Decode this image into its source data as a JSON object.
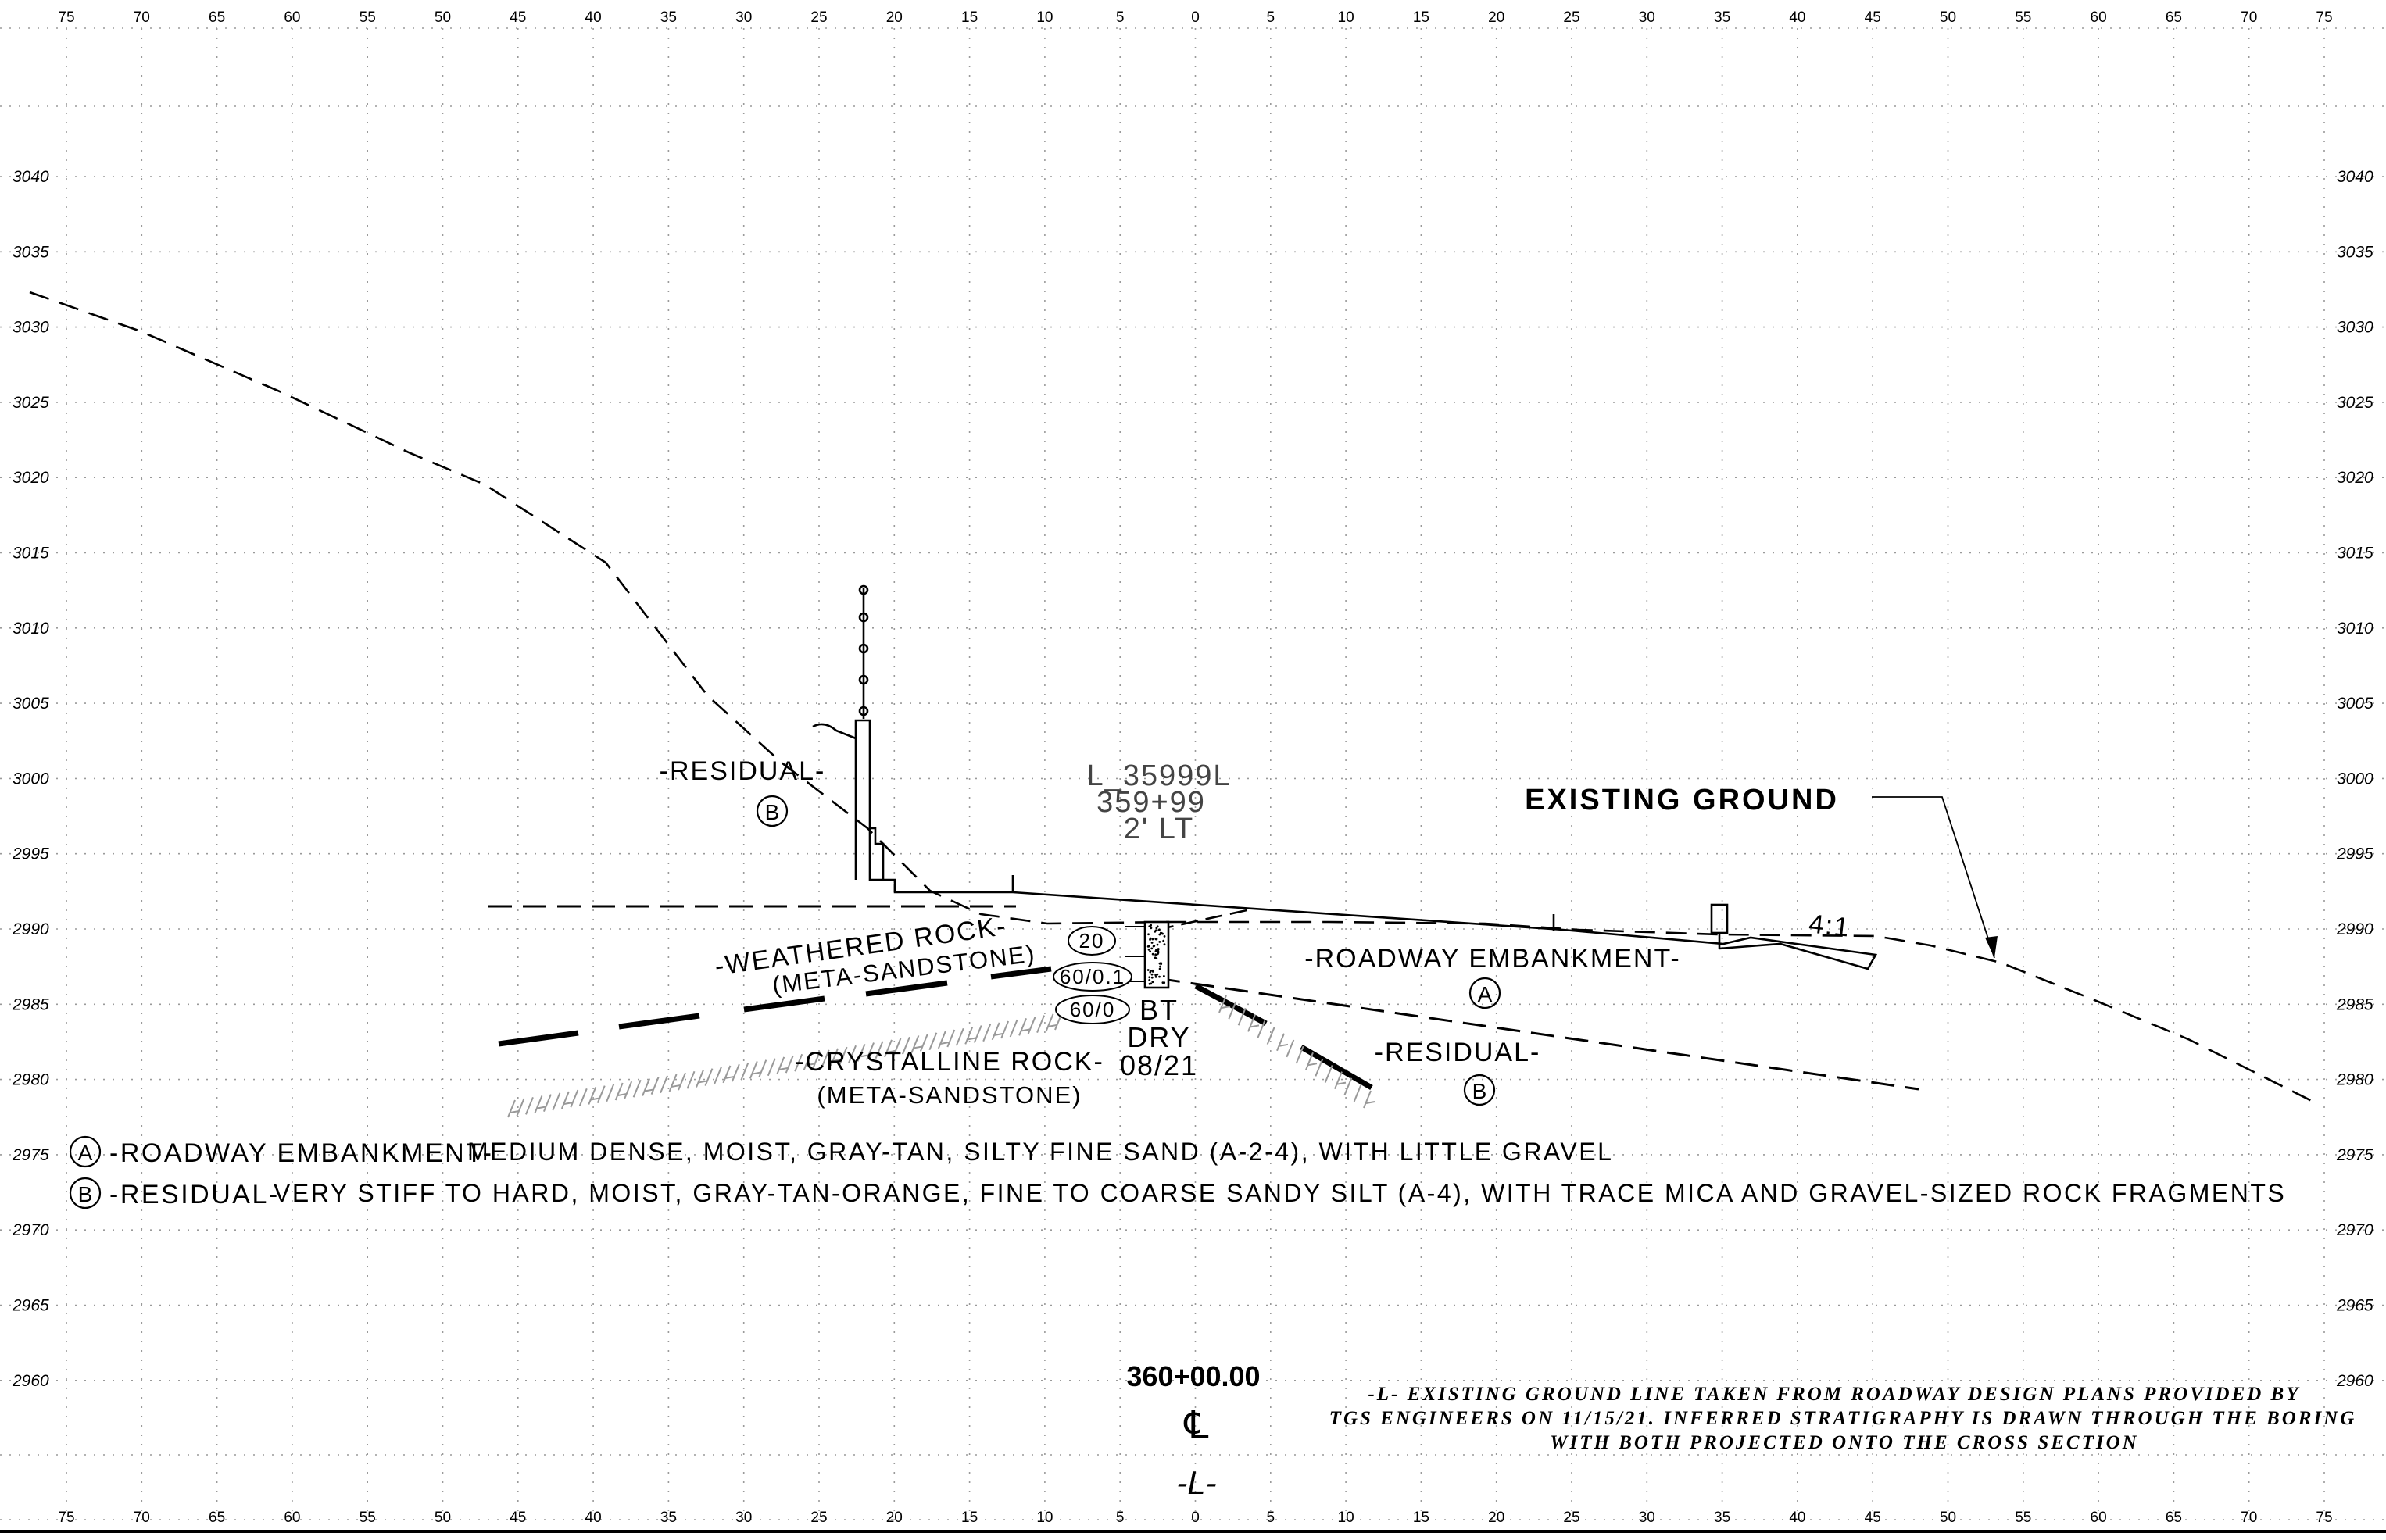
{
  "x_axis": {
    "ticks": [
      "75",
      "70",
      "65",
      "60",
      "55",
      "50",
      "45",
      "40",
      "35",
      "30",
      "25",
      "20",
      "15",
      "10",
      "5",
      "0",
      "5",
      "10",
      "15",
      "20",
      "25",
      "30",
      "35",
      "40",
      "45",
      "50",
      "55",
      "60",
      "65",
      "70",
      "75"
    ]
  },
  "y_axis": {
    "ticks": [
      "3040",
      "3035",
      "3030",
      "3025",
      "3020",
      "3015",
      "3010",
      "3005",
      "3000",
      "2995",
      "2990",
      "2985",
      "2980",
      "2975",
      "2970",
      "2965",
      "2960"
    ]
  },
  "labels": {
    "residual_upper": "-RESIDUAL-",
    "residual_upper_marker": "B",
    "boring_id": "L_35999L",
    "boring_station": "359+99",
    "boring_offset": "2' LT",
    "existing_ground": "EXISTING GROUND",
    "slope": "4:1",
    "weathered_rock": "-WEATHERED ROCK-",
    "weathered_rock_sub": "(META-SANDSTONE)",
    "roadway_embankment": "-ROADWAY EMBANKMENT-",
    "roadway_embankment_marker": "A",
    "crystalline_rock": "-CRYSTALLINE ROCK-",
    "crystalline_rock_sub": "(META-SANDSTONE)",
    "residual_lower": "-RESIDUAL-",
    "residual_lower_marker": "B",
    "bt": "BT",
    "dry": "DRY",
    "date": "08/21",
    "blow_counts": [
      "20",
      "60/0.1",
      "60/0"
    ]
  },
  "legend": [
    {
      "marker": "A",
      "name": "-ROADWAY EMBANKMENT-",
      "description": "MEDIUM DENSE, MOIST, GRAY-TAN, SILTY FINE SAND (A-2-4), WITH LITTLE GRAVEL"
    },
    {
      "marker": "B",
      "name": "-RESIDUAL-",
      "description": "VERY STIFF TO HARD, MOIST, GRAY-TAN-ORANGE, FINE TO COARSE SANDY SILT (A-4), WITH TRACE MICA AND GRAVEL-SIZED ROCK FRAGMENTS"
    }
  ],
  "station": {
    "value": "360+00.00",
    "centerline_symbol": "℄",
    "alignment": "-L-"
  },
  "note": {
    "line1": "-L- EXISTING GROUND LINE TAKEN FROM ROADWAY DESIGN PLANS PROVIDED BY",
    "line2": "TGS ENGINEERS ON 11/15/21. INFERRED STRATIGRAPHY IS DRAWN THROUGH THE BORING",
    "line3": "WITH BOTH PROJECTED ONTO THE CROSS SECTION"
  }
}
